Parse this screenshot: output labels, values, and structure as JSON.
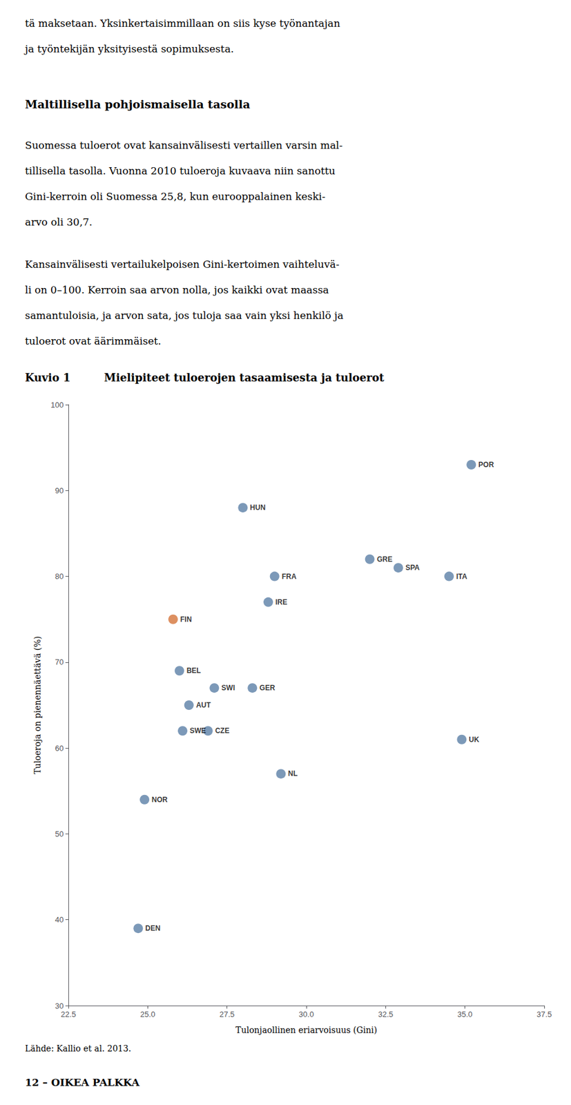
{
  "page_text": {
    "para1": [
      "tä maksetaan. Yksinkertaisimmillaan on siis kyse työnantajan",
      "ja työntekijän yksityisestä sopimuksesta."
    ],
    "heading": "Maltillisella pohjoismaisella tasolla",
    "para2": [
      "Suomessa tuloerot ovat kansainvälisesti vertaillen varsin mal-",
      "tillisella tasolla. Vuonna 2010 tuloeroja kuvaava niin sanottu",
      "Gini-kerroin oli Suomessa 25,8, kun eurooppalainen keski-",
      "arvo oli 30,7."
    ],
    "para3": [
      "Kansainvälisesti vertailukelpoisen Gini-kertoimen vaihteluvä-",
      "li on 0–100. Kerroin saa arvon nolla, jos kaikki ovat maassa",
      "samantuloisia, ja arvon sata, jos tuloja saa vain yksi henkilö ja",
      "tuloerot ovat äärimmäiset."
    ],
    "footer": "12 – OIKEA PALKKA"
  },
  "chart_data": {
    "type": "scatter",
    "figure_label": "Kuvio 1",
    "title": "Mielipiteet tuloerojen tasaamisesta ja tuloerot",
    "xlabel": "Tulonjaollinen eriarvoisuus (Gini)",
    "ylabel": "Tuloeroja on pienennäettävä (%)",
    "source": "Lähde: Kallio et al. 2013.",
    "point_labels": [
      "FIN",
      "NOR",
      "DEN",
      "BEL",
      "AUT",
      "SWE",
      "SWI",
      "CZE",
      "HUN",
      "FRA",
      "IRE",
      "GER",
      "NL",
      "GRE",
      "SPA",
      "ITA",
      "UK",
      "POR"
    ],
    "x": [
      25.8,
      24.9,
      24.7,
      26.0,
      26.3,
      26.1,
      27.1,
      26.9,
      28.0,
      29.0,
      28.8,
      28.3,
      29.2,
      32.0,
      32.9,
      34.5,
      34.9,
      35.2
    ],
    "values": [
      75,
      54,
      39,
      69,
      65,
      62,
      67,
      62,
      88,
      80,
      77,
      67,
      57,
      82,
      81,
      80,
      61,
      93
    ],
    "colors": [
      "#D4743A",
      "#5B7FA6",
      "#5B7FA6",
      "#5B7FA6",
      "#5B7FA6",
      "#5B7FA6",
      "#5B7FA6",
      "#5B7FA6",
      "#5B7FA6",
      "#5B7FA6",
      "#5B7FA6",
      "#5B7FA6",
      "#5B7FA6",
      "#5B7FA6",
      "#5B7FA6",
      "#5B7FA6",
      "#5B7FA6",
      "#5B7FA6"
    ],
    "xlim": [
      22.5,
      37.5
    ],
    "ylim": [
      30,
      100
    ],
    "xticks": [
      22.5,
      {
        "value": 25,
        "label": "25.0"
      },
      27.5,
      {
        "value": 30,
        "label": "30.0"
      },
      32.5,
      {
        "value": 35,
        "label": "35.0"
      },
      37.5
    ],
    "yticks": [
      30,
      40,
      50,
      60,
      70,
      80,
      90,
      100
    ],
    "grid": false
  }
}
